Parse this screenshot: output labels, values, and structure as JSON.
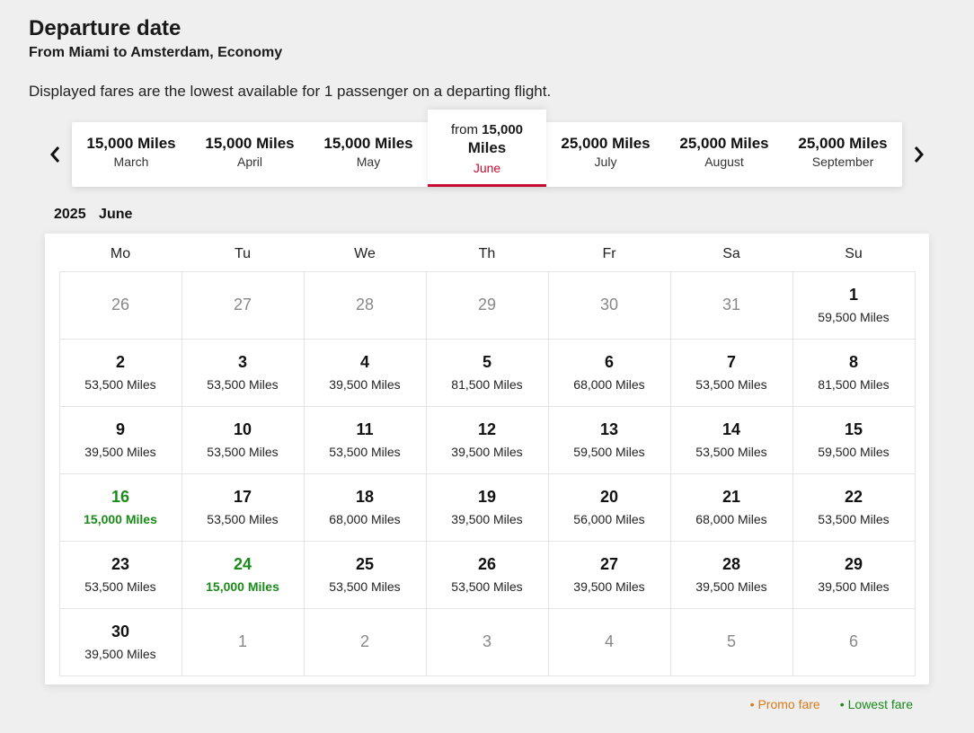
{
  "header": {
    "title": "Departure date",
    "subtitle": "From Miami to Amsterdam, Economy",
    "disclaimer": "Displayed fares are the lowest available for 1 passenger on a departing flight."
  },
  "monthsBar": {
    "activeIndex": 3,
    "activeFrom": "from",
    "tabs": [
      {
        "miles": "15,000 Miles",
        "name": "March"
      },
      {
        "miles": "15,000 Miles",
        "name": "April"
      },
      {
        "miles": "15,000 Miles",
        "name": "May"
      },
      {
        "miles": "15,000",
        "milesWord": "Miles",
        "name": "June"
      },
      {
        "miles": "25,000 Miles",
        "name": "July"
      },
      {
        "miles": "25,000 Miles",
        "name": "August"
      },
      {
        "miles": "25,000 Miles",
        "name": "September"
      }
    ]
  },
  "calendar": {
    "year": "2025",
    "month": "June",
    "dow": [
      "Mo",
      "Tu",
      "We",
      "Th",
      "Fr",
      "Sa",
      "Su"
    ],
    "cells": [
      {
        "d": "26",
        "out": true
      },
      {
        "d": "27",
        "out": true
      },
      {
        "d": "28",
        "out": true
      },
      {
        "d": "29",
        "out": true
      },
      {
        "d": "30",
        "out": true
      },
      {
        "d": "31",
        "out": true
      },
      {
        "d": "1",
        "miles": "59,500 Miles"
      },
      {
        "d": "2",
        "miles": "53,500 Miles"
      },
      {
        "d": "3",
        "miles": "53,500 Miles"
      },
      {
        "d": "4",
        "miles": "39,500 Miles"
      },
      {
        "d": "5",
        "miles": "81,500 Miles"
      },
      {
        "d": "6",
        "miles": "68,000 Miles"
      },
      {
        "d": "7",
        "miles": "53,500 Miles"
      },
      {
        "d": "8",
        "miles": "81,500 Miles"
      },
      {
        "d": "9",
        "miles": "39,500 Miles"
      },
      {
        "d": "10",
        "miles": "53,500 Miles"
      },
      {
        "d": "11",
        "miles": "53,500 Miles"
      },
      {
        "d": "12",
        "miles": "39,500 Miles"
      },
      {
        "d": "13",
        "miles": "59,500 Miles"
      },
      {
        "d": "14",
        "miles": "53,500 Miles"
      },
      {
        "d": "15",
        "miles": "59,500 Miles"
      },
      {
        "d": "16",
        "miles": "15,000 Miles",
        "lowest": true
      },
      {
        "d": "17",
        "miles": "53,500 Miles"
      },
      {
        "d": "18",
        "miles": "68,000 Miles"
      },
      {
        "d": "19",
        "miles": "39,500 Miles"
      },
      {
        "d": "20",
        "miles": "56,000 Miles"
      },
      {
        "d": "21",
        "miles": "68,000 Miles"
      },
      {
        "d": "22",
        "miles": "53,500 Miles"
      },
      {
        "d": "23",
        "miles": "53,500 Miles"
      },
      {
        "d": "24",
        "miles": "15,000 Miles",
        "lowest": true
      },
      {
        "d": "25",
        "miles": "53,500 Miles"
      },
      {
        "d": "26",
        "miles": "53,500 Miles"
      },
      {
        "d": "27",
        "miles": "39,500 Miles"
      },
      {
        "d": "28",
        "miles": "39,500 Miles"
      },
      {
        "d": "29",
        "miles": "39,500 Miles"
      },
      {
        "d": "30",
        "miles": "39,500 Miles"
      },
      {
        "d": "1",
        "out": true
      },
      {
        "d": "2",
        "out": true
      },
      {
        "d": "3",
        "out": true
      },
      {
        "d": "4",
        "out": true
      },
      {
        "d": "5",
        "out": true
      },
      {
        "d": "6",
        "out": true
      }
    ]
  },
  "legend": {
    "promo": "Promo fare",
    "lowest": "Lowest fare"
  },
  "colors": {
    "background": "#efefef",
    "accent_red": "#c60c30",
    "lowest_green": "#1a8a1a",
    "promo_orange": "#d87a1a",
    "cell_border": "#e4e4e4"
  }
}
